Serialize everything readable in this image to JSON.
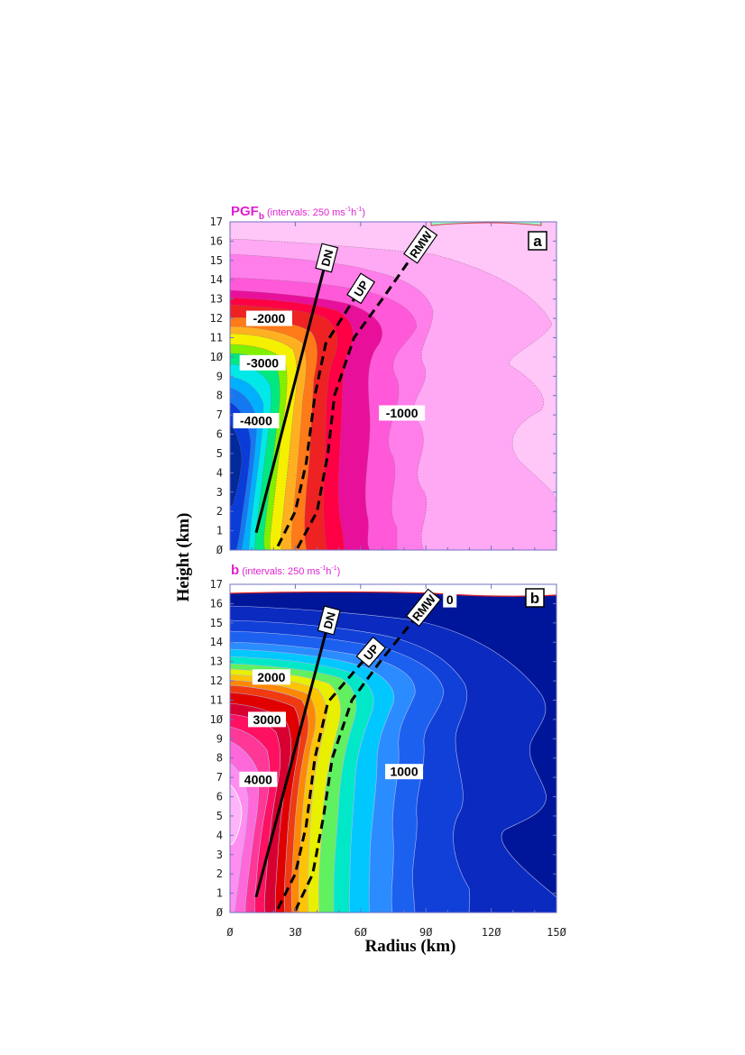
{
  "chart_data": [
    {
      "type": "heatmap",
      "panel_label": "a",
      "title": "PGF",
      "title_subscript": "b",
      "interval_note_prefix": "(intervals: 250 ms",
      "interval_note_sup1": "-1",
      "interval_note_mid": "h",
      "interval_note_sup2": "-1",
      "interval_note_suffix": ")",
      "xlim": [
        0,
        150
      ],
      "ylim": [
        0,
        17
      ],
      "xticks": [
        "Ø",
        "3Ø",
        "6Ø",
        "9Ø",
        "12Ø",
        "15Ø"
      ],
      "yticks": [
        "Ø",
        "1",
        "2",
        "3",
        "4",
        "5",
        "6",
        "7",
        "8",
        "9",
        "1Ø",
        "11",
        "12",
        "13",
        "14",
        "15",
        "16",
        "17"
      ],
      "contour_labels": [
        {
          "text": "-2000",
          "x": 18,
          "y": 12.0
        },
        {
          "text": "-3000",
          "x": 15,
          "y": 9.7
        },
        {
          "text": "-4000",
          "x": 12,
          "y": 6.7
        },
        {
          "text": "-1000",
          "x": 79,
          "y": 7.1
        }
      ],
      "lines": [
        {
          "label": "DN",
          "style": "solid",
          "points": [
            [
              12,
              0.9
            ],
            [
              43,
              14.5
            ]
          ]
        },
        {
          "label": "UP",
          "style": "dashed",
          "points": [
            [
              22,
              0.2
            ],
            [
              30,
              2.0
            ],
            [
              35,
              4.5
            ],
            [
              39,
              8.0
            ],
            [
              44,
              10.7
            ],
            [
              57,
              13.0
            ]
          ]
        },
        {
          "label": "RMW",
          "style": "dashed",
          "points": [
            [
              31,
              0.1
            ],
            [
              40,
              2.0
            ],
            [
              45,
              5.0
            ],
            [
              48,
              8.0
            ],
            [
              57,
              11.0
            ],
            [
              70,
              13.0
            ],
            [
              83,
              15.1
            ]
          ]
        }
      ]
    },
    {
      "type": "heatmap",
      "panel_label": "b",
      "title": "b",
      "interval_note_prefix": "(intervals: 250 ms",
      "interval_note_sup1": "-1",
      "interval_note_mid": "h",
      "interval_note_sup2": "-1",
      "interval_note_suffix": ")",
      "xlim": [
        0,
        150
      ],
      "ylim": [
        0,
        17
      ],
      "xticks": [
        "Ø",
        "3Ø",
        "6Ø",
        "9Ø",
        "12Ø",
        "15Ø"
      ],
      "yticks": [
        "Ø",
        "1",
        "2",
        "3",
        "4",
        "5",
        "6",
        "7",
        "8",
        "9",
        "1Ø",
        "11",
        "12",
        "13",
        "14",
        "15",
        "16",
        "17"
      ],
      "contour_labels": [
        {
          "text": "2000",
          "x": 19,
          "y": 12.2
        },
        {
          "text": "3000",
          "x": 17,
          "y": 10.0
        },
        {
          "text": "4000",
          "x": 13,
          "y": 6.9
        },
        {
          "text": "1000",
          "x": 80,
          "y": 7.3
        },
        {
          "text": "0",
          "x": 101,
          "y": 16.2
        }
      ],
      "lines": [
        {
          "label": "DN",
          "style": "solid",
          "points": [
            [
              12,
              0.8
            ],
            [
              44,
              14.5
            ]
          ]
        },
        {
          "label": "UP",
          "style": "dashed",
          "points": [
            [
              22,
              0.2
            ],
            [
              30,
              2.0
            ],
            [
              35,
              4.5
            ],
            [
              39,
              8.0
            ],
            [
              45,
              10.9
            ],
            [
              61,
              13.0
            ]
          ]
        },
        {
          "label": "RMW",
          "style": "dashed",
          "points": [
            [
              30,
              0.1
            ],
            [
              38,
              2.0
            ],
            [
              43,
              5.0
            ],
            [
              47,
              8.0
            ],
            [
              56,
              11.0
            ],
            [
              69,
              13.0
            ],
            [
              84,
              15.1
            ]
          ]
        }
      ]
    }
  ],
  "shared": {
    "xlabel": "Radius (km)",
    "ylabel": "Height (km)"
  }
}
